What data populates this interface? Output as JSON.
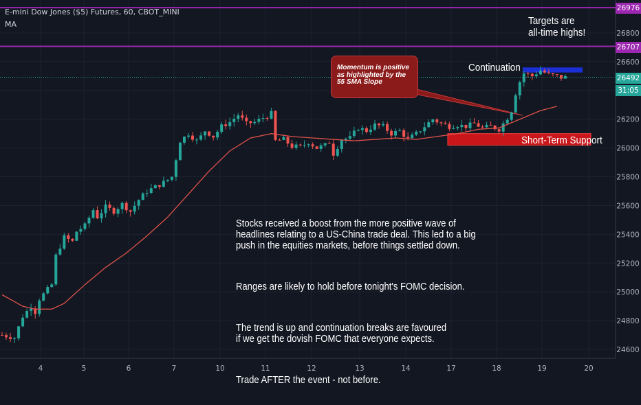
{
  "header": {
    "symbol": "E-mini Dow Jones ($5) Futures, 60, CBOT_MINI",
    "indicator": "MA"
  },
  "price_labels": {
    "top_line": "26976",
    "mid_line": "26707",
    "last": "26492",
    "countdown": "31:05"
  },
  "annotations": {
    "targets": "Targets are\nall-time highs!",
    "continuation": "Continuation",
    "support": "Short-Term Support",
    "momentum": "Momentum is positive\nas highlighted by the\n55 SMA Slope",
    "commentary": [
      "Stocks received a boost from the more positive wave of\nheadlines relating to a US-China trade deal. This led to a big\npush in the equities markets, before things settled down.",
      "Ranges are likely to hold before tonight's FOMC decision.",
      "The trend is up and continuation breaks are favoured\nif we get the dovish FOMC that everyone expects.",
      "Trade AFTER the event - not before."
    ]
  },
  "colors": {
    "background": "#131722",
    "up": "#26a69a",
    "down": "#ef5350",
    "ma": "#e0524a",
    "level_line": "#9c27b0",
    "support_box": "#c8161a",
    "continuation_box": "#1a2fd6",
    "last_price": "#26a69a"
  },
  "chart_data": {
    "type": "candlestick",
    "y_ticks": [
      24600,
      24800,
      25000,
      25200,
      25400,
      25600,
      25800,
      26000,
      26200,
      26400,
      26600,
      26800
    ],
    "ylim": [
      24560,
      27020
    ],
    "x_ticks": [
      "4",
      "5",
      "6",
      "7",
      "10",
      "11",
      "12",
      "13",
      "14",
      "17",
      "18",
      "19",
      "20"
    ],
    "horizontal_levels": [
      26976,
      26707
    ],
    "last_price": 26492,
    "price_path": [
      [
        0,
        24700
      ],
      [
        3,
        24680
      ],
      [
        5,
        24830
      ],
      [
        7,
        24900
      ],
      [
        8,
        24860
      ],
      [
        9,
        24950
      ],
      [
        12,
        25050
      ],
      [
        13,
        25250
      ],
      [
        15,
        25380
      ],
      [
        17,
        25350
      ],
      [
        18,
        25420
      ],
      [
        20,
        25460
      ],
      [
        22,
        25570
      ],
      [
        23,
        25520
      ],
      [
        25,
        25590
      ],
      [
        27,
        25560
      ],
      [
        29,
        25610
      ],
      [
        31,
        25560
      ],
      [
        33,
        25640
      ],
      [
        35,
        25700
      ],
      [
        37,
        25730
      ],
      [
        39,
        25760
      ],
      [
        41,
        25800
      ],
      [
        43,
        26050
      ],
      [
        45,
        26100
      ],
      [
        47,
        26050
      ],
      [
        48,
        26080
      ],
      [
        49,
        26120
      ],
      [
        51,
        26080
      ],
      [
        53,
        26150
      ],
      [
        55,
        26180
      ],
      [
        57,
        26230
      ],
      [
        59,
        26170
      ],
      [
        61,
        26180
      ],
      [
        63,
        26210
      ],
      [
        64,
        26220
      ],
      [
        65,
        26240
      ],
      [
        66,
        26050
      ],
      [
        68,
        26060
      ],
      [
        70,
        26010
      ],
      [
        72,
        26010
      ],
      [
        74,
        26040
      ],
      [
        76,
        26000
      ],
      [
        78,
        26020
      ],
      [
        79,
        26040
      ],
      [
        80,
        25960
      ],
      [
        82,
        26060
      ],
      [
        84,
        26070
      ],
      [
        86,
        26140
      ],
      [
        88,
        26120
      ],
      [
        90,
        26160
      ],
      [
        92,
        26150
      ],
      [
        94,
        26100
      ],
      [
        96,
        26120
      ],
      [
        98,
        26060
      ],
      [
        100,
        26100
      ],
      [
        102,
        26150
      ],
      [
        104,
        26200
      ],
      [
        106,
        26170
      ],
      [
        108,
        26150
      ],
      [
        110,
        26160
      ],
      [
        112,
        26150
      ],
      [
        114,
        26170
      ],
      [
        116,
        26140
      ],
      [
        118,
        26150
      ],
      [
        120,
        26130
      ],
      [
        122,
        26210
      ],
      [
        123,
        26260
      ],
      [
        124,
        26380
      ],
      [
        125,
        26460
      ],
      [
        126,
        26520
      ],
      [
        128,
        26500
      ],
      [
        130,
        26540
      ],
      [
        132,
        26510
      ],
      [
        134,
        26500
      ],
      [
        135,
        26490
      ],
      [
        136,
        26492
      ]
    ],
    "ma_55": [
      [
        0,
        24980
      ],
      [
        5,
        24900
      ],
      [
        8,
        24880
      ],
      [
        12,
        24880
      ],
      [
        15,
        24920
      ],
      [
        20,
        25050
      ],
      [
        25,
        25170
      ],
      [
        30,
        25270
      ],
      [
        35,
        25390
      ],
      [
        40,
        25520
      ],
      [
        45,
        25680
      ],
      [
        50,
        25840
      ],
      [
        55,
        25980
      ],
      [
        60,
        26070
      ],
      [
        65,
        26100
      ],
      [
        70,
        26080
      ],
      [
        75,
        26070
      ],
      [
        80,
        26060
      ],
      [
        85,
        26050
      ],
      [
        90,
        26060
      ],
      [
        95,
        26070
      ],
      [
        100,
        26060
      ],
      [
        105,
        26080
      ],
      [
        110,
        26100
      ],
      [
        115,
        26130
      ],
      [
        120,
        26140
      ],
      [
        125,
        26200
      ],
      [
        130,
        26260
      ],
      [
        134,
        26290
      ]
    ]
  }
}
